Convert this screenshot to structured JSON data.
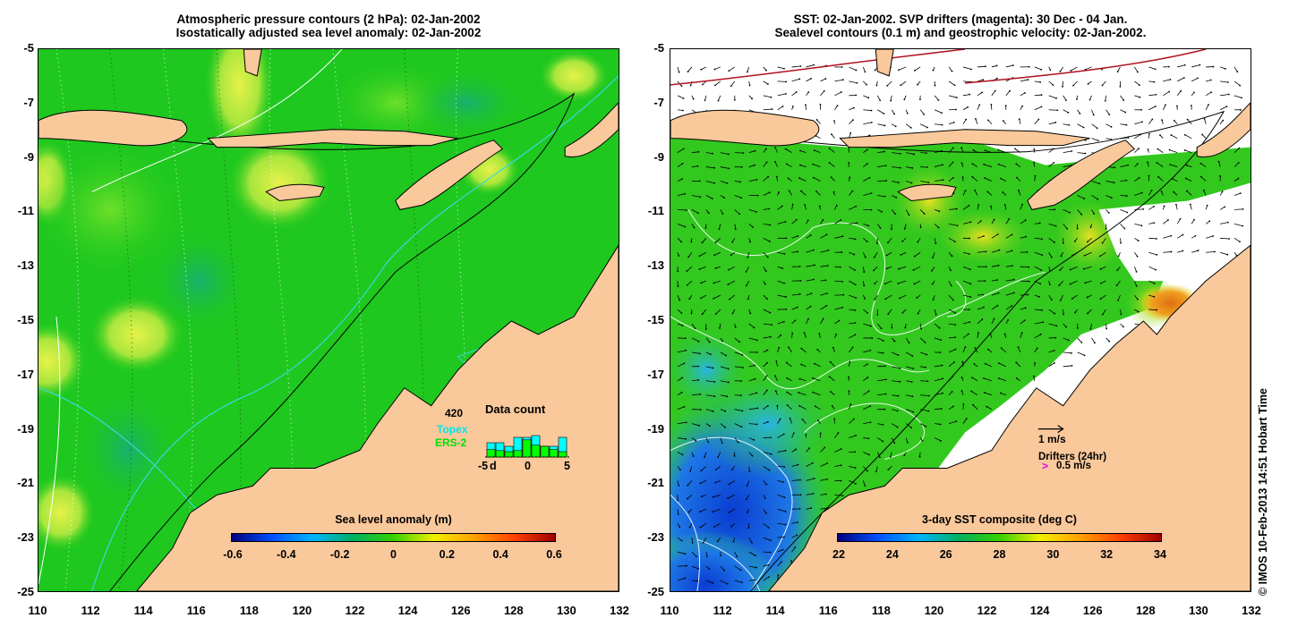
{
  "left_panel": {
    "title_line1": "Atmospheric pressure contours (2 hPa): 02-Jan-2002",
    "title_line2": "Isostatically adjusted sea level anomaly: 02-Jan-2002",
    "colorbar": {
      "title": "Sea level anomaly (m)",
      "labels": [
        "-0.6",
        "-0.4",
        "-0.2",
        "0",
        "0.2",
        "0.4",
        "0.6"
      ],
      "colors": [
        "#00007f",
        "#0050ff",
        "#00b4ff",
        "#00b060",
        "#36d000",
        "#f0f000",
        "#ffa000",
        "#ff4000",
        "#a00000"
      ]
    },
    "data_count": {
      "label": "Data count",
      "max_count": "420",
      "series_topex": "Topex",
      "series_ers2": "ERS-2",
      "axis_labels": [
        "-5",
        "d",
        "0",
        "5"
      ],
      "colors": {
        "topex": "#00ffff",
        "ers2": "#00ff00"
      },
      "topex": [
        0.4,
        0.4,
        0.3,
        0.55,
        0.55,
        0.6,
        0.3,
        0.3,
        0.55
      ],
      "ers2": [
        0.35,
        0.3,
        0.25,
        0.3,
        0.8,
        0.55,
        0.5,
        0.35,
        0.25
      ]
    }
  },
  "right_panel": {
    "title_line1": "SST: 02-Jan-2002. SVP drifters (magenta): 30 Dec - 04 Jan.",
    "title_line2": "Sealevel contours (0.1 m) and geostrophic velocity: 02-Jan-2002.",
    "colorbar": {
      "title": "3-day SST composite (deg C)",
      "labels": [
        "22",
        "24",
        "26",
        "28",
        "30",
        "32",
        "34"
      ],
      "colors": [
        "#00007f",
        "#0050ff",
        "#00b4ff",
        "#00b060",
        "#36d000",
        "#f0f000",
        "#ffa000",
        "#ff4000",
        "#a00000"
      ]
    },
    "velocity_legend": "1 m/s",
    "drifter_legend_title": "Drifters (24hr)",
    "drifter_legend_symbol": ">",
    "drifter_legend_value": "0.5 m/s"
  },
  "axes": {
    "lat_labels": [
      "-5",
      "-7",
      "-9",
      "-11",
      "-13",
      "-15",
      "-17",
      "-19",
      "-21",
      "-23",
      "-25"
    ],
    "lon_labels": [
      "110",
      "112",
      "114",
      "116",
      "118",
      "120",
      "122",
      "124",
      "126",
      "128",
      "130",
      "132"
    ]
  },
  "copyright": "© IMOS 10-Feb-2013 14:51 Hobart Time",
  "colors": {
    "land": "#f9c89b",
    "ocean_sla": "#1ec81e",
    "sst_blue": "#1e78e6",
    "sst_green": "#32c81e",
    "no_data": "#ffffff"
  }
}
